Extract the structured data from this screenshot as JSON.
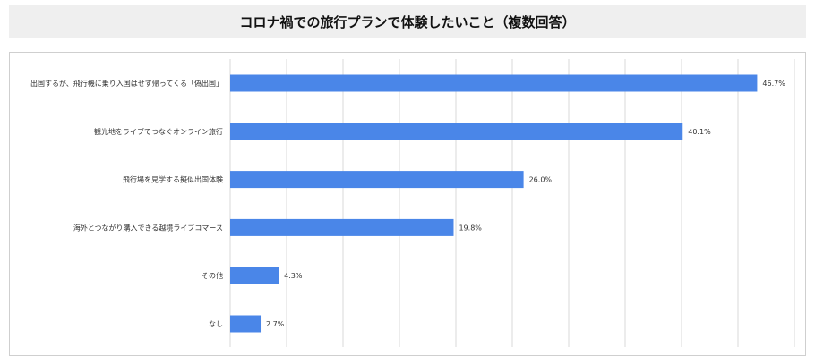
{
  "header": {
    "title": "コロナ禍での旅行プランで体験したいこと（複数回答）"
  },
  "colors": {
    "bar": "#4a86e8",
    "title_bg": "#efefef",
    "grid": "#d9d9d9"
  },
  "chart_data": {
    "type": "bar",
    "orientation": "horizontal",
    "title": "コロナ禍での旅行プランで体験したいこと（複数回答）",
    "xlabel": "",
    "ylabel": "",
    "grid": true,
    "xlim": [
      0,
      50
    ],
    "categories": [
      "出国するが、飛行機に乗り入国はせず帰ってくる「偽出国」",
      "観光地をライブでつなぐオンライン旅行",
      "飛行場を見学する擬似出国体験",
      "海外とつながり購入できる越境ライブコマース",
      "その他",
      "なし"
    ],
    "values": [
      46.7,
      40.1,
      26.0,
      19.8,
      4.3,
      2.7
    ],
    "value_labels": [
      "46.7%",
      "40.1%",
      "26.0%",
      "19.8%",
      "4.3%",
      "2.7%"
    ]
  }
}
